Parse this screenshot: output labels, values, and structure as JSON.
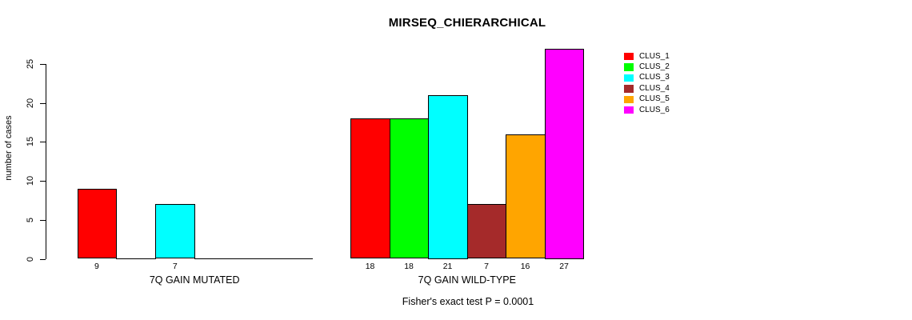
{
  "chart_data": {
    "type": "bar",
    "title": "MIRSEQ_CHIERARCHICAL",
    "ylabel": "number of cases",
    "ylim": [
      0,
      25
    ],
    "yticks": [
      0,
      5,
      10,
      15,
      20,
      25
    ],
    "grid": false,
    "legend_position": "right",
    "categories": [
      "CLUS_1",
      "CLUS_2",
      "CLUS_3",
      "CLUS_4",
      "CLUS_5",
      "CLUS_6"
    ],
    "colors": [
      "#ff0000",
      "#00ff00",
      "#00ffff",
      "#a52a2a",
      "#ffa500",
      "#ff00ff"
    ],
    "groups": [
      {
        "label": "7Q GAIN MUTATED",
        "values": [
          9,
          0,
          7,
          0,
          0,
          0
        ]
      },
      {
        "label": "7Q GAIN WILD-TYPE",
        "values": [
          18,
          18,
          21,
          7,
          16,
          27
        ]
      }
    ],
    "annotation": "Fisher's exact test P = 0.0001"
  }
}
